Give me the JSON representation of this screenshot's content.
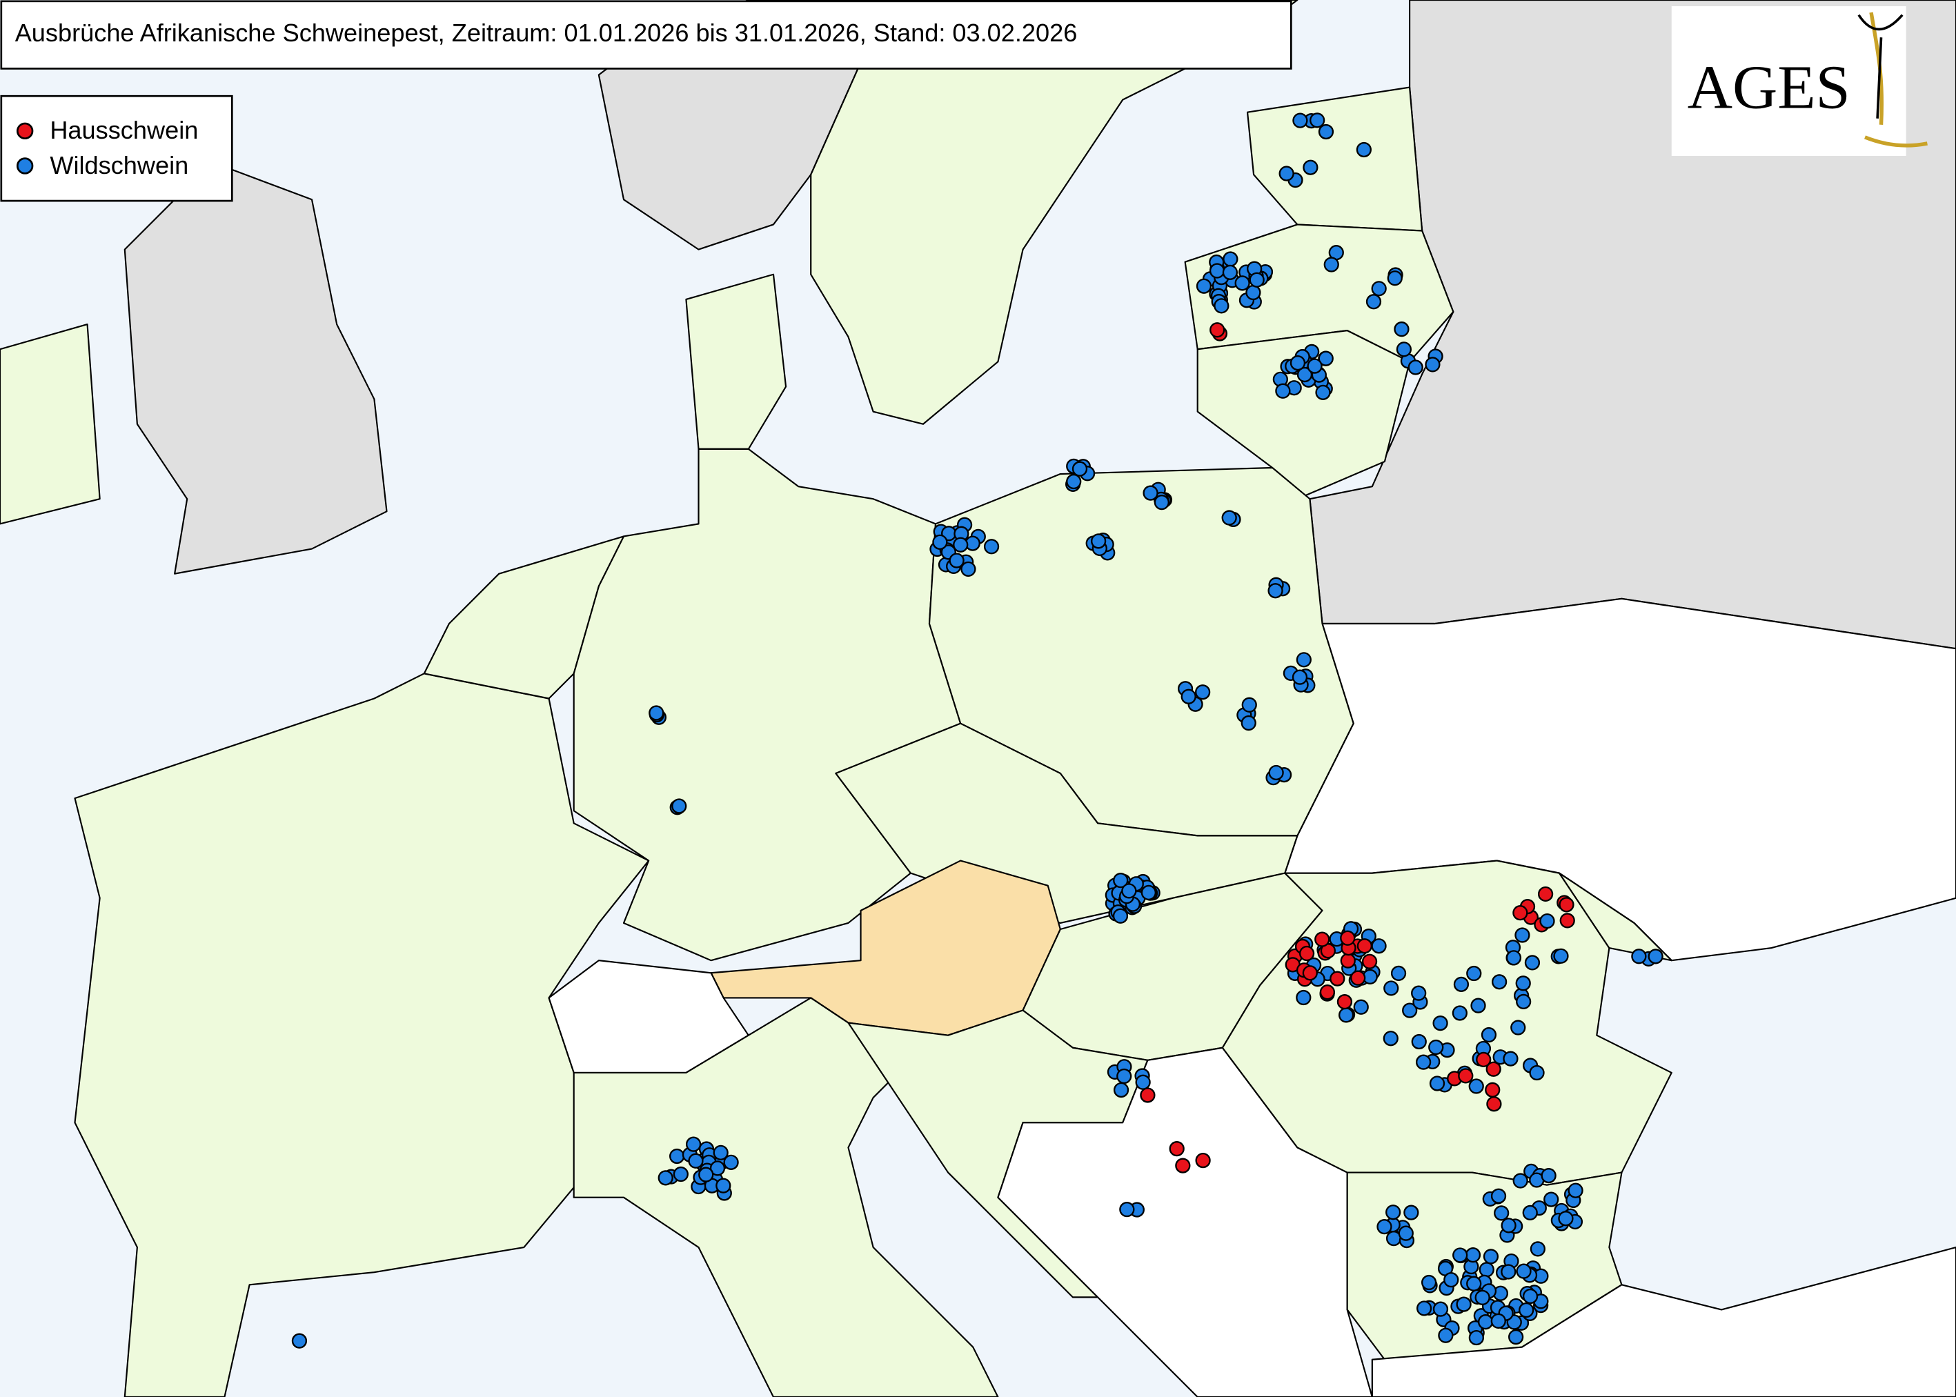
{
  "header": {
    "title": "Ausbrüche Afrikanische Schweinepest, Zeitraum: 01.01.2026 bis 31.01.2026, Stand: 03.02.2026"
  },
  "legend": {
    "items": [
      {
        "label": "Hausschwein",
        "color": "#e8131b"
      },
      {
        "label": "Wildschwein",
        "color": "#1f7fe3"
      }
    ]
  },
  "logo": {
    "text": "AGES"
  }
}
